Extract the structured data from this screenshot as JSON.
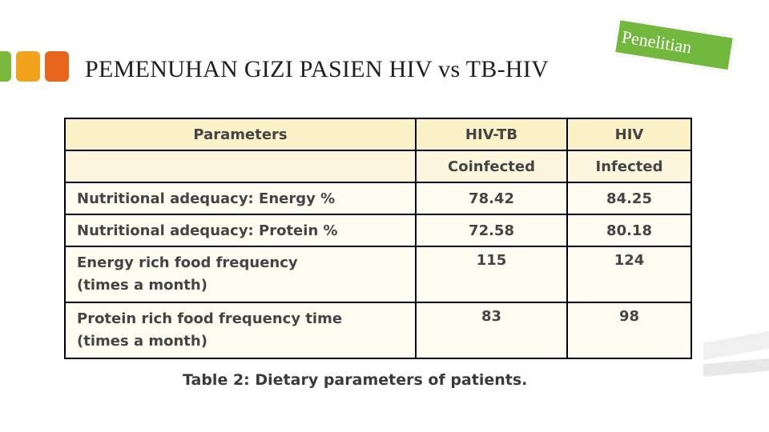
{
  "slide": {
    "title": "PEMENUHAN GIZI PASIEN HIV vs TB-HIV",
    "tag": "Penelitian",
    "colors": {
      "green": "#72b83c",
      "yellow": "#f2a31c",
      "orange": "#e8661b"
    }
  },
  "table": {
    "headers": [
      "Parameters",
      "HIV-TB",
      "HIV"
    ],
    "subheaders": [
      "",
      "Coinfected",
      "Infected"
    ],
    "rows": [
      {
        "parameter": [
          "Nutritional adequacy: Energy %"
        ],
        "hiv_tb": "78.42",
        "hiv": "84.25"
      },
      {
        "parameter": [
          "Nutritional adequacy: Protein %"
        ],
        "hiv_tb": "72.58",
        "hiv": "80.18"
      },
      {
        "parameter": [
          "Energy rich food frequency",
          "(times a month)"
        ],
        "hiv_tb": "115",
        "hiv": "124"
      },
      {
        "parameter": [
          "Protein rich food frequency time",
          "(times a month)"
        ],
        "hiv_tb": "83",
        "hiv": "98"
      }
    ],
    "caption": "Table 2: Dietary parameters of patients."
  }
}
